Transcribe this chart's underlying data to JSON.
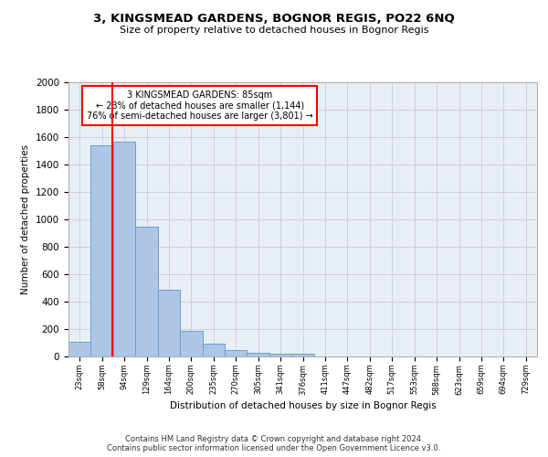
{
  "title": "3, KINGSMEAD GARDENS, BOGNOR REGIS, PO22 6NQ",
  "subtitle": "Size of property relative to detached houses in Bognor Regis",
  "xlabel": "Distribution of detached houses by size in Bognor Regis",
  "ylabel": "Number of detached properties",
  "footnote1": "Contains HM Land Registry data © Crown copyright and database right 2024.",
  "footnote2": "Contains public sector information licensed under the Open Government Licence v3.0.",
  "bar_labels": [
    "23sqm",
    "58sqm",
    "94sqm",
    "129sqm",
    "164sqm",
    "200sqm",
    "235sqm",
    "270sqm",
    "305sqm",
    "341sqm",
    "376sqm",
    "411sqm",
    "447sqm",
    "482sqm",
    "517sqm",
    "553sqm",
    "588sqm",
    "623sqm",
    "659sqm",
    "694sqm",
    "729sqm"
  ],
  "bar_values": [
    110,
    1540,
    1570,
    950,
    490,
    190,
    95,
    45,
    30,
    20,
    20,
    0,
    0,
    0,
    0,
    0,
    0,
    0,
    0,
    0,
    0
  ],
  "bar_color": "#adc6e5",
  "bar_edgecolor": "#6a9fcf",
  "ylim": [
    0,
    2000
  ],
  "yticks": [
    0,
    200,
    400,
    600,
    800,
    1000,
    1200,
    1400,
    1600,
    1800,
    2000
  ],
  "property_bin_index": 1,
  "vline_color": "red",
  "annotation_title": "3 KINGSMEAD GARDENS: 85sqm",
  "annotation_line1": "← 23% of detached houses are smaller (1,144)",
  "annotation_line2": "76% of semi-detached houses are larger (3,801) →",
  "annotation_box_color": "white",
  "annotation_box_edgecolor": "red",
  "grid_color": "#cccccc",
  "background_color": "#e8eef5",
  "fig_background": "#ffffff"
}
